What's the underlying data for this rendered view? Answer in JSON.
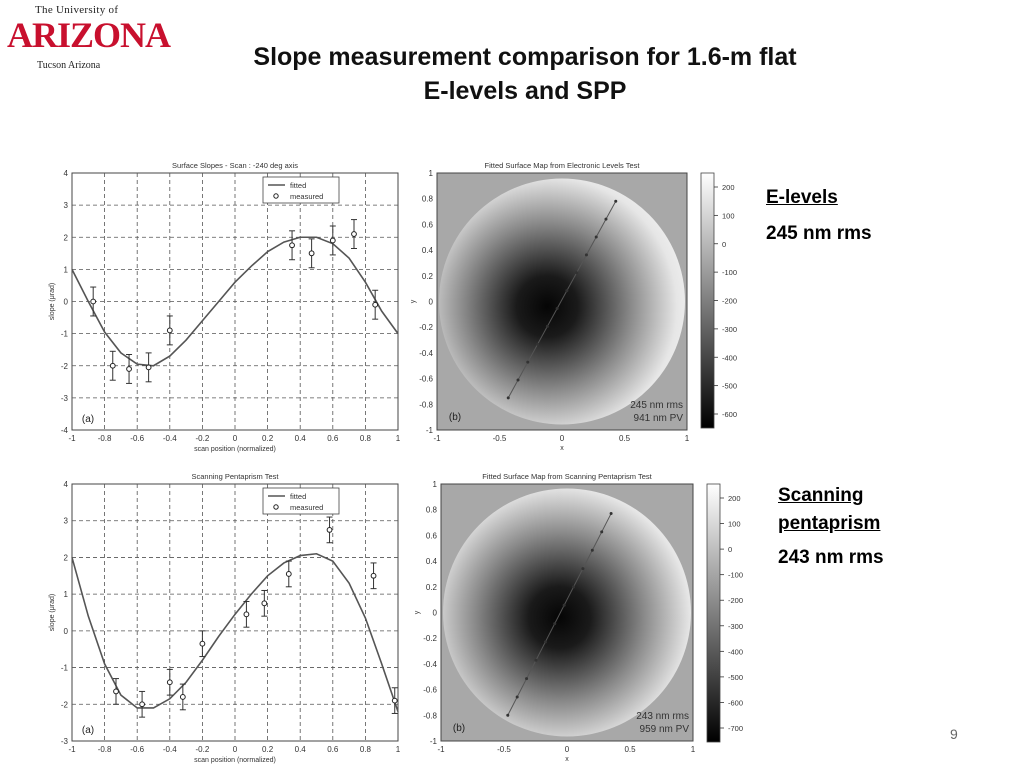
{
  "logo": {
    "top": "The University of",
    "big": "ARIZONA",
    "bottom": "Tucson Arizona"
  },
  "title": {
    "line1": "Slope measurement comparison for 1.6-m flat",
    "line2": "E-levels and SPP"
  },
  "sidebar": {
    "elevels": {
      "heading": "E-levels",
      "value": "245 nm rms"
    },
    "spp": {
      "heading_line1": "Scanning",
      "heading_line2": "pentaprism",
      "value": "243 nm rms"
    }
  },
  "page_number": "9",
  "chart_data": [
    {
      "type": "line",
      "title": "Surface Slopes - Scan : -240 deg axis",
      "xlabel": "scan position (normalized)",
      "ylabel": "slope (μrad)",
      "panel_label": "(a)",
      "xlim": [
        -1,
        1
      ],
      "ylim": [
        -4,
        4
      ],
      "xticks": [
        -1,
        -0.8,
        -0.6,
        -0.4,
        -0.2,
        0,
        0.2,
        0.4,
        0.6,
        0.8,
        1
      ],
      "yticks": [
        -4,
        -3,
        -2,
        -1,
        0,
        1,
        2,
        3,
        4
      ],
      "grid": true,
      "legend": {
        "placement": "top-right",
        "entries": [
          "fitted",
          "measured"
        ]
      },
      "series": [
        {
          "name": "fitted",
          "x": [
            -1,
            -0.9,
            -0.8,
            -0.7,
            -0.6,
            -0.5,
            -0.4,
            -0.3,
            -0.2,
            -0.1,
            0,
            0.1,
            0.2,
            0.3,
            0.4,
            0.5,
            0.6,
            0.7,
            0.8,
            0.9,
            1
          ],
          "y": [
            1.0,
            0.0,
            -0.95,
            -1.6,
            -1.95,
            -2.0,
            -1.7,
            -1.2,
            -0.6,
            0.0,
            0.6,
            1.1,
            1.55,
            1.85,
            2.0,
            2.0,
            1.8,
            1.35,
            0.6,
            -0.3,
            -1.0
          ]
        },
        {
          "name": "measured",
          "x": [
            -0.87,
            -0.75,
            -0.65,
            -0.53,
            -0.4,
            0.35,
            0.47,
            0.6,
            0.73,
            0.86
          ],
          "y": [
            0.0,
            -2.0,
            -2.1,
            -2.05,
            -0.9,
            1.75,
            1.5,
            1.9,
            2.1,
            -0.1
          ],
          "err": [
            0.45,
            0.45,
            0.45,
            0.45,
            0.45,
            0.45,
            0.45,
            0.45,
            0.45,
            0.45
          ]
        }
      ]
    },
    {
      "type": "heatmap",
      "title": "Fitted Surface Map from Electronic Levels Test",
      "xlabel": "x",
      "ylabel": "y",
      "panel_label": "(b)",
      "xlim": [
        -1,
        1
      ],
      "ylim": [
        -1,
        1
      ],
      "xticks": [
        -1,
        -0.5,
        0,
        0.5,
        1
      ],
      "yticks": [
        1,
        0.8,
        0.6,
        0.4,
        0.2,
        0,
        -0.2,
        -0.4,
        -0.6,
        -0.8,
        -1
      ],
      "colorbar_ticks": [
        200,
        100,
        0,
        -100,
        -200,
        -300,
        -400,
        -500,
        -600
      ],
      "scan_line": {
        "from": [
          -0.43,
          -0.75
        ],
        "to": [
          0.43,
          0.78
        ],
        "markers": 12
      },
      "stats": [
        "245 nm rms",
        "941 nm PV"
      ]
    },
    {
      "type": "line",
      "title": "Scanning Pentaprism Test",
      "xlabel": "scan position (normalized)",
      "ylabel": "slope (μrad)",
      "panel_label": "(a)",
      "xlim": [
        -1,
        1
      ],
      "ylim": [
        -3,
        4
      ],
      "xticks": [
        -1,
        -0.8,
        -0.6,
        -0.4,
        -0.2,
        0,
        0.2,
        0.4,
        0.6,
        0.8,
        1
      ],
      "yticks": [
        -3,
        -2,
        -1,
        0,
        1,
        2,
        3,
        4
      ],
      "grid": true,
      "legend": {
        "placement": "top-right",
        "entries": [
          "fitted",
          "measured"
        ]
      },
      "series": [
        {
          "name": "fitted",
          "x": [
            -1,
            -0.9,
            -0.8,
            -0.7,
            -0.6,
            -0.5,
            -0.4,
            -0.3,
            -0.2,
            -0.1,
            0,
            0.1,
            0.2,
            0.3,
            0.4,
            0.5,
            0.6,
            0.7,
            0.8,
            0.9,
            1
          ],
          "y": [
            2.0,
            0.4,
            -0.9,
            -1.75,
            -2.1,
            -2.1,
            -1.85,
            -1.4,
            -0.8,
            -0.15,
            0.45,
            1.0,
            1.5,
            1.85,
            2.05,
            2.1,
            1.9,
            1.3,
            0.35,
            -0.9,
            -2.2
          ]
        },
        {
          "name": "measured",
          "x": [
            -0.73,
            -0.57,
            -0.4,
            -0.32,
            -0.2,
            0.07,
            0.18,
            0.33,
            0.58,
            0.85,
            0.98
          ],
          "y": [
            -1.65,
            -2.0,
            -1.4,
            -1.8,
            -0.35,
            0.45,
            0.75,
            1.55,
            2.75,
            1.5,
            -1.9
          ],
          "err": [
            0.35,
            0.35,
            0.35,
            0.35,
            0.35,
            0.35,
            0.35,
            0.35,
            0.35,
            0.35,
            0.35
          ]
        }
      ]
    },
    {
      "type": "heatmap",
      "title": "Fitted Surface Map from Scanning Pentaprism Test",
      "xlabel": "x",
      "ylabel": "y",
      "panel_label": "(b)",
      "xlim": [
        -1,
        1
      ],
      "ylim": [
        -1,
        1
      ],
      "xticks": [
        -1,
        -0.5,
        0,
        0.5,
        1
      ],
      "yticks": [
        1,
        0.8,
        0.6,
        0.4,
        0.2,
        0,
        -0.2,
        -0.4,
        -0.6,
        -0.8,
        -1
      ],
      "colorbar_ticks": [
        200,
        100,
        0,
        -100,
        -200,
        -300,
        -400,
        -500,
        -600,
        -700
      ],
      "scan_line": {
        "from": [
          -0.47,
          -0.8
        ],
        "to": [
          0.35,
          0.77
        ],
        "markers": 12
      },
      "stats": [
        "243 nm rms",
        "959 nm PV"
      ]
    }
  ]
}
